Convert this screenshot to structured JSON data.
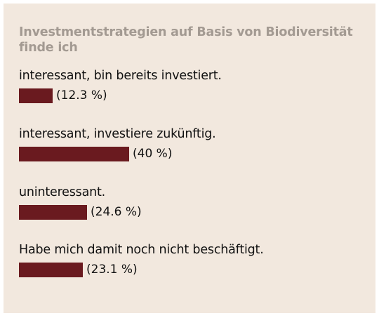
{
  "poll": {
    "title": "Investmentstrategien auf Basis von Biodiversität finde ich"
  },
  "chart_data": {
    "type": "bar",
    "orientation": "horizontal",
    "title": "Investmentstrategien auf Basis von Biodiversität finde ich",
    "bar_color": "#6a1a1f",
    "background_color": "#f2e8de",
    "categories": [
      "interessant, bin bereits investiert.",
      "interessant, investiere zukünftig.",
      "uninteressant.",
      "Habe mich damit noch nicht beschäftigt."
    ],
    "values": [
      12.3,
      40,
      24.6,
      23.1
    ],
    "value_labels": [
      "(12.3 %)",
      "(40 %)",
      "(24.6 %)",
      "(23.1 %)"
    ],
    "unit": "%"
  }
}
